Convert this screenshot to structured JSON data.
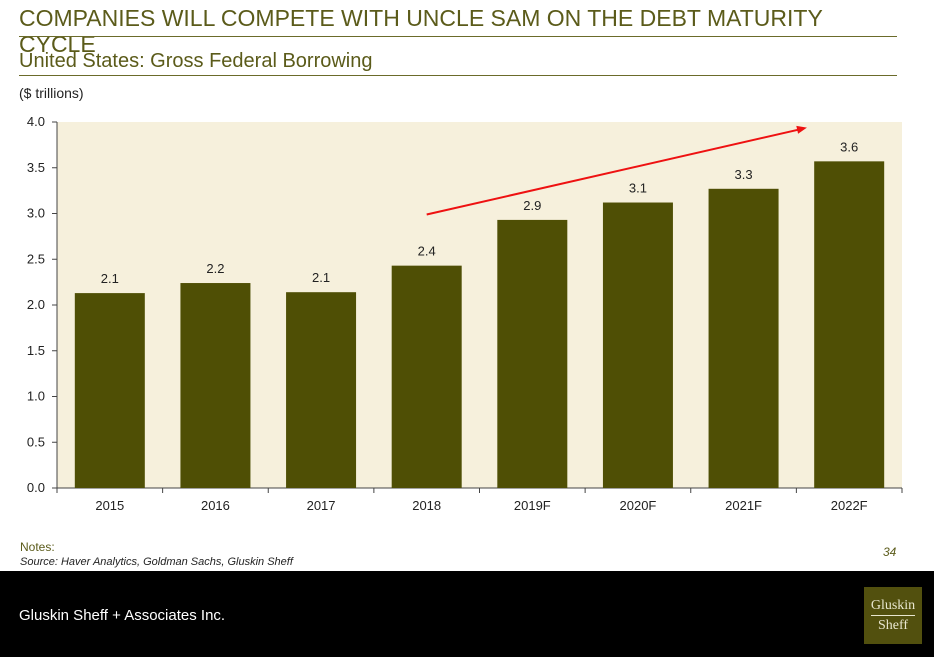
{
  "header": {
    "title": "COMPANIES WILL COMPETE WITH UNCLE SAM ON THE DEBT MATURITY CYCLE",
    "subtitle": "United States: Gross Federal Borrowing",
    "units": "($ trillions)"
  },
  "chart_data": {
    "type": "bar",
    "categories": [
      "2015",
      "2016",
      "2017",
      "2018",
      "2019F",
      "2020F",
      "2021F",
      "2022F"
    ],
    "values": [
      2.1,
      2.2,
      2.1,
      2.4,
      2.9,
      3.1,
      3.3,
      3.6
    ],
    "bar_heights": [
      2.13,
      2.24,
      2.14,
      2.43,
      2.93,
      3.12,
      3.27,
      3.57
    ],
    "ylim": [
      0,
      4.0
    ],
    "yticks": [
      "0.0",
      "0.5",
      "1.0",
      "1.5",
      "2.0",
      "2.5",
      "3.0",
      "3.5",
      "4.0"
    ],
    "grid": false,
    "colors": {
      "bar": "#4f4f05",
      "plot_bg": "#f6f0dc",
      "arrow": "#ee1111"
    },
    "annotations": [
      {
        "type": "arrow",
        "from_category": "2018",
        "to_category": "2022F",
        "direction": "up"
      }
    ]
  },
  "footnotes": {
    "notes_label": "Notes:",
    "source": "Source: Haver Analytics, Goldman Sachs, Gluskin Sheff",
    "page_number": "34"
  },
  "footer": {
    "company": "Gluskin Sheff + Associates Inc.",
    "logo_line1": "Gluskin",
    "logo_line2": "Sheff"
  }
}
